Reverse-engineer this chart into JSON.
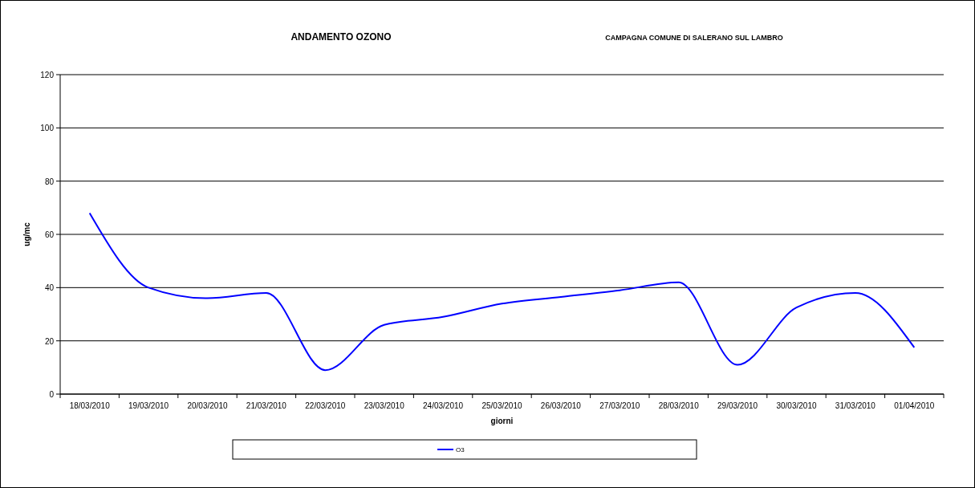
{
  "chart_data": {
    "type": "line",
    "title": "ANDAMENTO OZONO",
    "subtitle": "CAMPAGNA COMUNE DI SALERANO SUL LAMBRO",
    "xlabel": "giorni",
    "ylabel": "ug/mc",
    "categories": [
      "18/03/2010",
      "19/03/2010",
      "20/03/2010",
      "21/03/2010",
      "22/03/2010",
      "23/03/2010",
      "24/03/2010",
      "25/03/2010",
      "26/03/2010",
      "27/03/2010",
      "28/03/2010",
      "29/03/2010",
      "30/03/2010",
      "31/03/2010",
      "01/04/2010"
    ],
    "series": [
      {
        "name": "O3",
        "color": "#0000ff",
        "values": [
          68,
          40,
          36,
          38,
          9,
          26,
          29,
          34,
          36.5,
          39,
          42,
          11,
          32.5,
          38,
          17.5
        ]
      }
    ],
    "ylim": [
      0,
      120
    ],
    "yticks": [
      0,
      20,
      40,
      60,
      80,
      100,
      120
    ],
    "grid": "y",
    "legend": "bottom",
    "marker": "none",
    "line_style": "solid"
  }
}
